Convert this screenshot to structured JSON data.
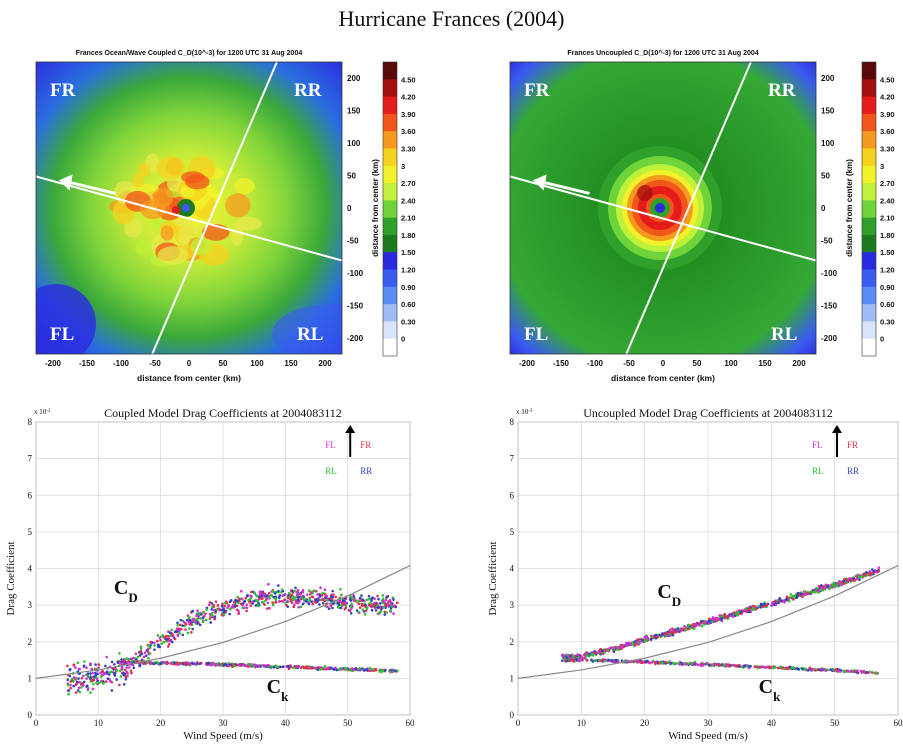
{
  "figure_title": "Hurricane Frances (2004)",
  "chart_data": [
    {
      "type": "heatmap",
      "title": "Frances Ocean/Wave Coupled C_D(10^-3) for 1200 UTC 31 Aug 2004",
      "xlabel": "distance from center (km)",
      "ylabel": "distance from center (km)",
      "xlim": [
        -225,
        225
      ],
      "ylim": [
        -225,
        225
      ],
      "xticks": [
        "-200",
        "-150",
        "-100",
        "-50",
        "0",
        "50",
        "100",
        "150",
        "200"
      ],
      "yticks": [
        "200",
        "150",
        "100",
        "50",
        "0",
        "-50",
        "-100",
        "-150",
        "-200"
      ],
      "quadrant_labels": {
        "fr": "FR",
        "rr": "RR",
        "fl": "FL",
        "rl": "RL"
      },
      "colorbar_ticks": [
        "4.50",
        "4.20",
        "3.90",
        "3.60",
        "3.30",
        "3",
        "2.70",
        "2.40",
        "2.10",
        "1.80",
        "1.50",
        "1.20",
        "0.90",
        "0.60",
        "0.30",
        "0"
      ],
      "colorbar_colors": [
        "#5a0a0a",
        "#a30e0e",
        "#e61c1c",
        "#f2551a",
        "#f59a1e",
        "#f5d21e",
        "#f2f22a",
        "#bff03a",
        "#6fd43a",
        "#2fa02a",
        "#1e7a1e",
        "#2a2ae0",
        "#3a5cf0",
        "#5a8cf5",
        "#9fbcf5",
        "#d8e4fa",
        "#ffffff"
      ]
    },
    {
      "type": "heatmap",
      "title": "Frances Uncoupled C_D(10^-3) for 1200 UTC 31 Aug 2004",
      "xlabel": "distance from center (km)",
      "ylabel": "distance from center (km)",
      "xlim": [
        -225,
        225
      ],
      "ylim": [
        -225,
        225
      ],
      "xticks": [
        "-200",
        "-150",
        "-100",
        "-50",
        "0",
        "50",
        "100",
        "150",
        "200"
      ],
      "yticks": [
        "200",
        "150",
        "100",
        "50",
        "0",
        "-50",
        "-100",
        "-150",
        "-200"
      ],
      "quadrant_labels": {
        "fr": "FR",
        "rr": "RR",
        "fl": "FL",
        "rl": "RL"
      },
      "colorbar_ticks": [
        "4.50",
        "4.20",
        "3.90",
        "3.60",
        "3.30",
        "3",
        "2.70",
        "2.40",
        "2.10",
        "1.80",
        "1.50",
        "1.20",
        "0.90",
        "0.60",
        "0.30",
        "0"
      ],
      "colorbar_colors": [
        "#5a0a0a",
        "#a30e0e",
        "#e61c1c",
        "#f2551a",
        "#f59a1e",
        "#f5d21e",
        "#f2f22a",
        "#bff03a",
        "#6fd43a",
        "#2fa02a",
        "#1e7a1e",
        "#2a2ae0",
        "#3a5cf0",
        "#5a8cf5",
        "#9fbcf5",
        "#d8e4fa",
        "#ffffff"
      ]
    },
    {
      "type": "scatter",
      "title": "Coupled Model Drag Coefficients at 2004083112",
      "xlabel": "Wind Speed (m/s)",
      "ylabel": "Drag Coefficient",
      "xlim": [
        0,
        60
      ],
      "ylim": [
        0,
        8
      ],
      "xticks": [
        0,
        10,
        20,
        30,
        40,
        50,
        60
      ],
      "yticks": [
        0,
        1,
        2,
        3,
        4,
        5,
        6,
        7,
        8
      ],
      "yexponent": "x 10",
      "yexponent_power": "-3",
      "legend": [
        {
          "name": "FL",
          "color": "#d030d0"
        },
        {
          "name": "FR",
          "color": "#e03050"
        },
        {
          "name": "RL",
          "color": "#30c030"
        },
        {
          "name": "RR",
          "color": "#3040c0"
        }
      ],
      "annotations": {
        "cd": "C",
        "cd_sub": "D",
        "ck": "C",
        "ck_sub": "k"
      },
      "reference_curve": [
        [
          0,
          1.0
        ],
        [
          10,
          1.23
        ],
        [
          20,
          1.55
        ],
        [
          30,
          1.98
        ],
        [
          40,
          2.55
        ],
        [
          50,
          3.25
        ],
        [
          60,
          4.08
        ]
      ],
      "cd_branch": {
        "x": [
          5,
          10,
          15,
          20,
          25,
          30,
          35,
          40,
          45,
          50,
          55,
          58
        ],
        "y": [
          1.0,
          1.05,
          1.35,
          2.0,
          2.55,
          2.95,
          3.15,
          3.25,
          3.2,
          3.1,
          3.0,
          2.95
        ]
      },
      "ck_branch": {
        "x": [
          13,
          20,
          30,
          40,
          50,
          58
        ],
        "y": [
          1.45,
          1.42,
          1.38,
          1.32,
          1.25,
          1.2
        ]
      }
    },
    {
      "type": "scatter",
      "title": "Uncoupled Model Drag Coefficients at 2004083112",
      "xlabel": "Wind Speed (m/s)",
      "ylabel": "Drag Coefficient",
      "xlim": [
        0,
        60
      ],
      "ylim": [
        0,
        8
      ],
      "xticks": [
        0,
        10,
        20,
        30,
        40,
        50,
        60
      ],
      "yticks": [
        0,
        1,
        2,
        3,
        4,
        5,
        6,
        7,
        8
      ],
      "yexponent": "x 10",
      "yexponent_power": "-3",
      "legend": [
        {
          "name": "FL",
          "color": "#d030d0"
        },
        {
          "name": "FR",
          "color": "#e03050"
        },
        {
          "name": "RL",
          "color": "#30c030"
        },
        {
          "name": "RR",
          "color": "#3040c0"
        }
      ],
      "annotations": {
        "cd": "C",
        "cd_sub": "D",
        "ck": "C",
        "ck_sub": "k"
      },
      "reference_curve": [
        [
          0,
          1.0
        ],
        [
          10,
          1.23
        ],
        [
          20,
          1.55
        ],
        [
          30,
          1.98
        ],
        [
          40,
          2.55
        ],
        [
          50,
          3.25
        ],
        [
          60,
          4.08
        ]
      ],
      "cd_branch": {
        "x": [
          7,
          10,
          15,
          20,
          30,
          40,
          50,
          57
        ],
        "y": [
          1.6,
          1.6,
          1.8,
          2.05,
          2.55,
          3.05,
          3.55,
          3.95
        ]
      },
      "ck_branch": {
        "x": [
          7,
          10,
          15,
          20,
          30,
          40,
          50,
          57
        ],
        "y": [
          1.5,
          1.5,
          1.48,
          1.45,
          1.38,
          1.3,
          1.22,
          1.15
        ]
      }
    }
  ]
}
